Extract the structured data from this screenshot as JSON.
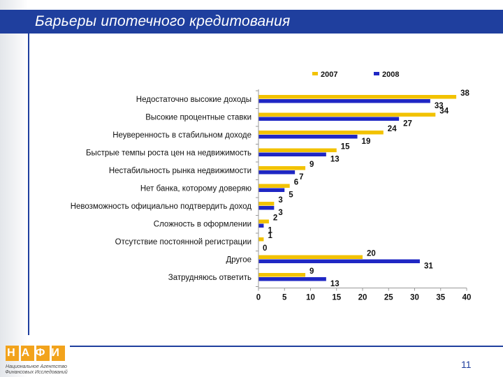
{
  "slide": {
    "title": "Барьеры ипотечного кредитования",
    "page_number": "11"
  },
  "logo": {
    "letters": "НАФИ",
    "caption_line1": "Национальное Агентство",
    "caption_line2": "Финансовых Исследований"
  },
  "colors": {
    "series_2007": "#f2c200",
    "series_2008": "#1f27c4",
    "title_bar": "#1f3f9e"
  },
  "chart_data": {
    "type": "bar",
    "orientation": "horizontal",
    "categories": [
      "Недостаточно высокие доходы",
      "Высокие процентные ставки",
      "Неуверенность в стабильном доходе",
      "Быстрые темпы роста цен на недвижимость",
      "Нестабильность рынка недвижимости",
      "Нет банка, которому доверяю",
      "Невозможность официально подтвердить доход",
      "Сложность в оформлении",
      "Отсутствие постоянной регистрации",
      "Другое",
      "Затрудняюсь ответить"
    ],
    "series": [
      {
        "name": "2007",
        "values": [
          38,
          34,
          24,
          15,
          9,
          6,
          3,
          2,
          1,
          20,
          9
        ]
      },
      {
        "name": "2008",
        "values": [
          33,
          27,
          19,
          13,
          7,
          5,
          3,
          1,
          0,
          31,
          13
        ]
      }
    ],
    "xlim": [
      0,
      40
    ],
    "xticks": [
      "0",
      "5",
      "10",
      "15",
      "20",
      "25",
      "30",
      "35",
      "40"
    ],
    "legend": "top",
    "grid": false
  }
}
